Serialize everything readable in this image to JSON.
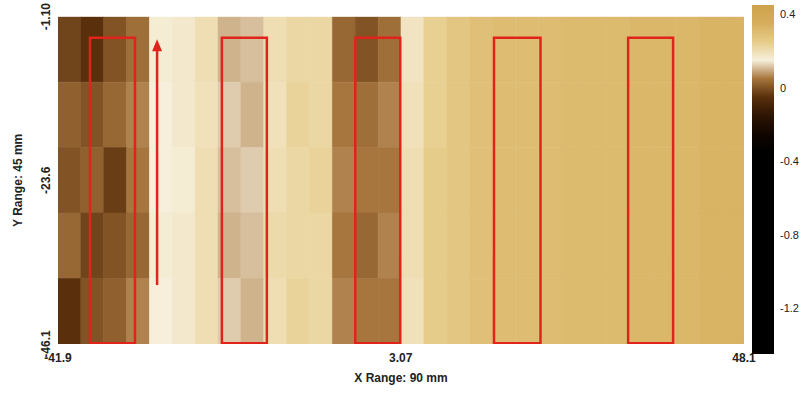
{
  "chart_data": {
    "type": "heatmap",
    "x_label": "X Range: 90 mm",
    "y_label": "Y Range: 45 mm",
    "xlim": [
      -41.9,
      48.1
    ],
    "xticks": [
      -41.9,
      3.07,
      48.1
    ],
    "ylim": [
      -46.1,
      -1.1
    ],
    "yticks": [
      -46.1,
      -23.6,
      {
        "value": -1.1,
        "label": "-1.10"
      }
    ],
    "x": [
      -40.4,
      -37.4,
      -34.4,
      -31.4,
      -28.4,
      -25.4,
      -22.4,
      -19.4,
      -16.4,
      -13.4,
      -10.4,
      -7.4,
      -4.4,
      -1.4,
      1.6,
      4.6,
      7.6,
      10.6,
      13.6,
      16.6,
      19.6,
      22.6,
      25.6,
      28.6,
      31.6,
      34.6,
      37.6,
      40.6,
      43.6,
      46.6
    ],
    "y": [
      -5.6,
      -14.6,
      -23.6,
      -32.6,
      -41.6
    ],
    "cells": [
      [
        -0.02,
        -0.05,
        0.0,
        0.04,
        0.16,
        0.17,
        0.2,
        0.1,
        0.11,
        0.2,
        0.22,
        0.22,
        0.03,
        0.0,
        0.04,
        0.18,
        0.24,
        0.27,
        0.29,
        0.3,
        0.3,
        0.3,
        0.31,
        0.31,
        0.31,
        0.32,
        0.32,
        0.32,
        0.33,
        0.33
      ],
      [
        0.02,
        0.0,
        0.03,
        0.06,
        0.15,
        0.17,
        0.19,
        0.12,
        0.1,
        0.19,
        0.23,
        0.22,
        0.05,
        0.04,
        0.06,
        0.19,
        0.24,
        0.27,
        0.29,
        0.3,
        0.3,
        0.3,
        0.31,
        0.31,
        0.31,
        0.32,
        0.32,
        0.32,
        0.33,
        0.33
      ],
      [
        0.0,
        0.02,
        -0.03,
        0.05,
        0.15,
        0.16,
        0.2,
        0.11,
        0.12,
        0.2,
        0.22,
        0.23,
        0.06,
        0.05,
        0.05,
        0.2,
        0.25,
        0.27,
        0.29,
        0.3,
        0.3,
        0.3,
        0.31,
        0.31,
        0.31,
        0.32,
        0.32,
        0.32,
        0.33,
        0.33
      ],
      [
        0.03,
        -0.02,
        0.0,
        0.03,
        0.16,
        0.17,
        0.2,
        0.1,
        0.11,
        0.21,
        0.22,
        0.22,
        0.05,
        0.03,
        0.06,
        0.2,
        0.25,
        0.27,
        0.29,
        0.3,
        0.3,
        0.3,
        0.31,
        0.31,
        0.31,
        0.32,
        0.32,
        0.32,
        0.33,
        0.33
      ],
      [
        -0.05,
        0.0,
        0.02,
        0.06,
        0.15,
        0.17,
        0.2,
        0.12,
        0.1,
        0.2,
        0.23,
        0.22,
        0.06,
        0.05,
        0.05,
        0.19,
        0.25,
        0.27,
        0.29,
        0.3,
        0.3,
        0.3,
        0.31,
        0.31,
        0.31,
        0.32,
        0.32,
        0.32,
        0.33,
        0.33
      ]
    ],
    "colorbar": {
      "range": [
        -1.45,
        0.45
      ],
      "ticks": [
        -1.2,
        -0.8,
        -0.4,
        0,
        0.4
      ],
      "colors": [
        "#000000",
        "#000000",
        "#000000",
        "#000000",
        "#000000",
        "#000000",
        "#000000",
        "#000000",
        "#000000",
        "#000000",
        "#000000",
        "#000000",
        "#120600",
        "#2e1504",
        "#5a300c",
        "#a7763e",
        "#f7efdc",
        "#e6cc8a",
        "#d6ae5c",
        "#cfa24a"
      ]
    },
    "boxes": {
      "color": "#e0241b",
      "regions": [
        {
          "x": [
            -37.7,
            -31.8
          ],
          "y": [
            -46.0,
            -4.0
          ]
        },
        {
          "x": [
            -20.4,
            -14.5
          ],
          "y": [
            -46.0,
            -4.0
          ]
        },
        {
          "x": [
            -2.9,
            3.0
          ],
          "y": [
            -46.0,
            -4.0
          ]
        },
        {
          "x": [
            15.3,
            21.4
          ],
          "y": [
            -46.0,
            -4.0
          ]
        },
        {
          "x": [
            32.9,
            38.8
          ],
          "y": [
            -46.0,
            -4.0
          ]
        }
      ]
    },
    "arrow": {
      "x": -28.9,
      "y": [
        -38.0,
        -4.2
      ]
    }
  }
}
